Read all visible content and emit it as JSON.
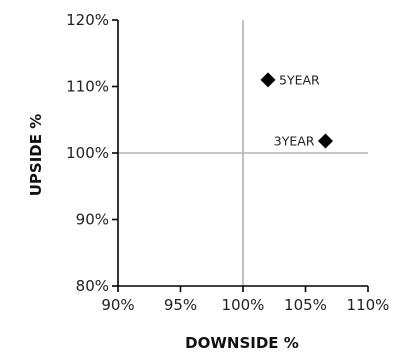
{
  "chart_data": {
    "type": "scatter",
    "xlabel": "DOWNSIDE %",
    "ylabel": "UPSIDE %",
    "xlim": [
      90,
      110
    ],
    "ylim": [
      80,
      120
    ],
    "x_ticks": [
      90,
      95,
      100,
      105,
      110
    ],
    "y_ticks": [
      80,
      90,
      100,
      110,
      120
    ],
    "x_tick_labels": [
      "90%",
      "95%",
      "100%",
      "105%",
      "110%"
    ],
    "y_tick_labels": [
      "80%",
      "90%",
      "100%",
      "110%",
      "120%"
    ],
    "reference_lines": {
      "x": 100,
      "y": 100
    },
    "grid": false,
    "marker": "diamond",
    "colors": {
      "marker": "#000000",
      "axis": "#000000",
      "reference": "#b3b3b3",
      "text": "#222222"
    },
    "points": [
      {
        "label": "5YEAR",
        "x": 102.0,
        "y": 111.0,
        "label_side": "right"
      },
      {
        "label": "3YEAR",
        "x": 106.6,
        "y": 101.8,
        "label_side": "left"
      }
    ]
  }
}
